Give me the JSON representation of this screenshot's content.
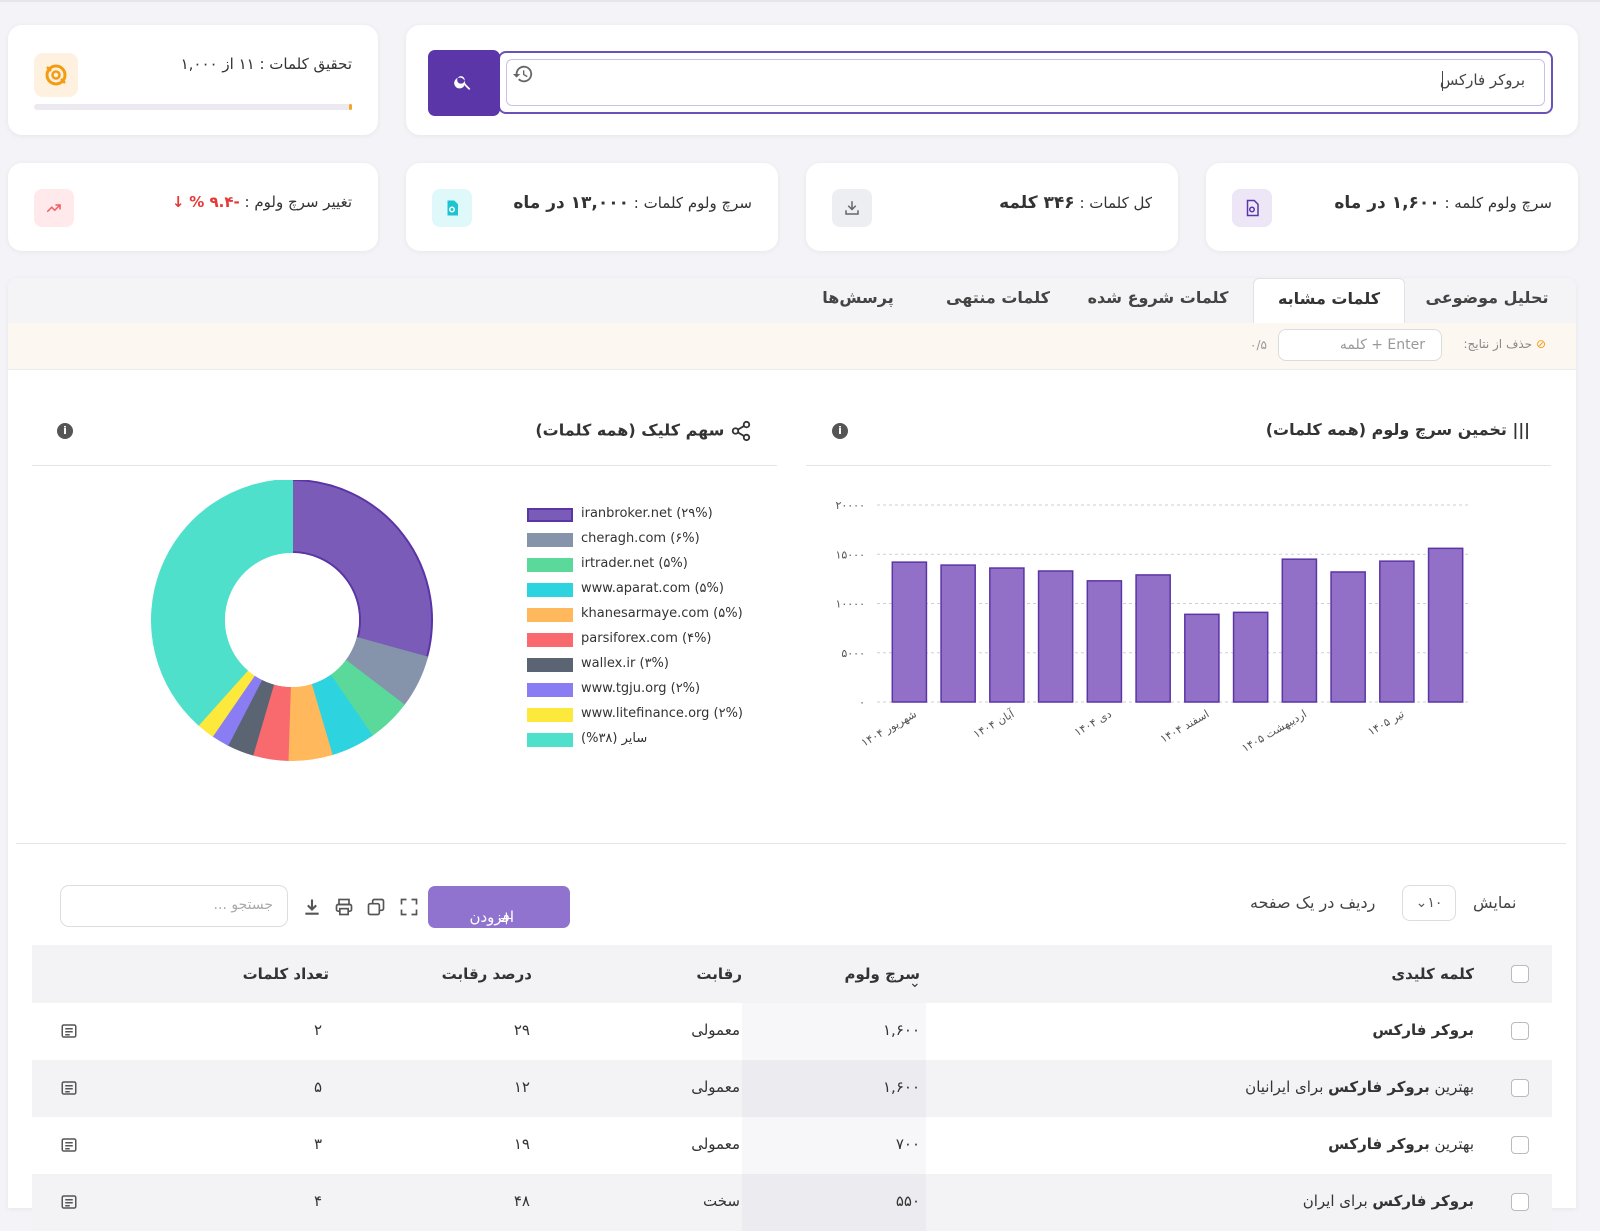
{
  "search": {
    "value": "بروکر فارکس"
  },
  "credits": {
    "text": "تحقیق کلمات : ۱۱ از ۱,۰۰۰",
    "used": 11,
    "total": 1000
  },
  "stats": [
    {
      "label": "سرچ ولوم کلمه :",
      "value": "۱,۶۰۰ در ماه"
    },
    {
      "label": "کل کلمات :",
      "value": "۳۴۶ کلمه"
    },
    {
      "label": "سرچ ولوم کلمات :",
      "value": "۱۳,۰۰۰ در ماه"
    },
    {
      "label": "تغییر سرچ ولوم :",
      "value": "-۹.۴ %",
      "arrow": "↓"
    }
  ],
  "tabs": [
    "تحلیل موضوعی",
    "کلمات مشابه",
    "کلمات شروع شده",
    "کلمات منتهی",
    "پرسش‌ها"
  ],
  "filter": {
    "label": "حذف از نتایج:",
    "placeholder": "کلمه + Enter",
    "count": "۰/۵"
  },
  "volume_chart_title": "تخمین سرچ ولوم (همه کلمات)",
  "share_chart_title": "سهم کلیک (همه کلمات)",
  "chart_data": [
    {
      "type": "bar",
      "title": "تخمین سرچ ولوم (همه کلمات)",
      "y_ticks": [
        "۰",
        "۵۰۰۰",
        "۱۰۰۰۰",
        "۱۵۰۰۰",
        "۲۰۰۰۰"
      ],
      "ylim": [
        0,
        20000
      ],
      "x_tick_labels": [
        "شهریور ۱۴۰۴",
        "آبان ۱۴۰۴",
        "دی ۱۴۰۴",
        "اسفند ۱۴۰۴",
        "اردیبهشت ۱۴۰۵",
        "تیر ۱۴۰۵"
      ],
      "values": [
        14200,
        13900,
        13600,
        13300,
        12300,
        12900,
        8900,
        9100,
        14500,
        13200,
        14300,
        15600
      ],
      "grid": true,
      "color": "#9370c8"
    },
    {
      "type": "pie",
      "title": "سهم کلیک (همه کلمات)",
      "labels": [
        "iranbroker.net (۲۹%)",
        "cheragh.com (۶%)",
        "irtrader.net (۵%)",
        "www.aparat.com (۵%)",
        "khanesarmaye.com (۵%)",
        "parsiforex.com (۴%)",
        "wallex.ir (۳%)",
        "www.tgju.org (۲%)",
        "www.litefinance.org (۲%)",
        "سایر (۳۸%)"
      ],
      "values": [
        29,
        6,
        5,
        5,
        5,
        4,
        3,
        2,
        2,
        38
      ],
      "colors": [
        "#7b5bb8",
        "#8593ab",
        "#5ad99a",
        "#2ed3e0",
        "#ffb85c",
        "#f86a6e",
        "#5a6472",
        "#8a7cf3",
        "#fde83c",
        "#4fe0cc"
      ],
      "borders": [
        "#5a35a6",
        "#8593ab",
        "#5ad99a",
        "#2ed3e0",
        "#ffb85c",
        "#f86a6e",
        "#5a6472",
        "#8a7cf3",
        "#fde83c",
        "#4fe0cc"
      ],
      "legend": "right"
    }
  ],
  "table": {
    "show_label": "نمایش",
    "rows_per_page_label": "ردیف در یک صفحه",
    "page_size": "۱۰",
    "add_button": "افزودن",
    "search_placeholder": "جستجو ...",
    "columns": [
      "کلمه کلیدی",
      "سرچ ولوم",
      "رقابت",
      "درصد رقابت",
      "تعداد کلمات"
    ],
    "rows": [
      {
        "pre": "",
        "bold": "بروکر فارکس",
        "post": "",
        "volume": "۱,۶۰۰",
        "competition": "معمولی",
        "percent": "۲۹",
        "words": "۲"
      },
      {
        "pre": "بهترین ",
        "bold": "بروکر فارکس",
        "post": " برای ایرانیان",
        "volume": "۱,۶۰۰",
        "competition": "معمولی",
        "percent": "۱۲",
        "words": "۵"
      },
      {
        "pre": "بهترین ",
        "bold": "بروکر فارکس",
        "post": "",
        "volume": "۷۰۰",
        "competition": "معمولی",
        "percent": "۱۹",
        "words": "۳"
      },
      {
        "pre": "",
        "bold": "بروکر فارکس",
        "post": " برای ایران",
        "volume": "۵۵۰",
        "competition": "سخت",
        "percent": "۴۸",
        "words": "۴"
      }
    ]
  }
}
